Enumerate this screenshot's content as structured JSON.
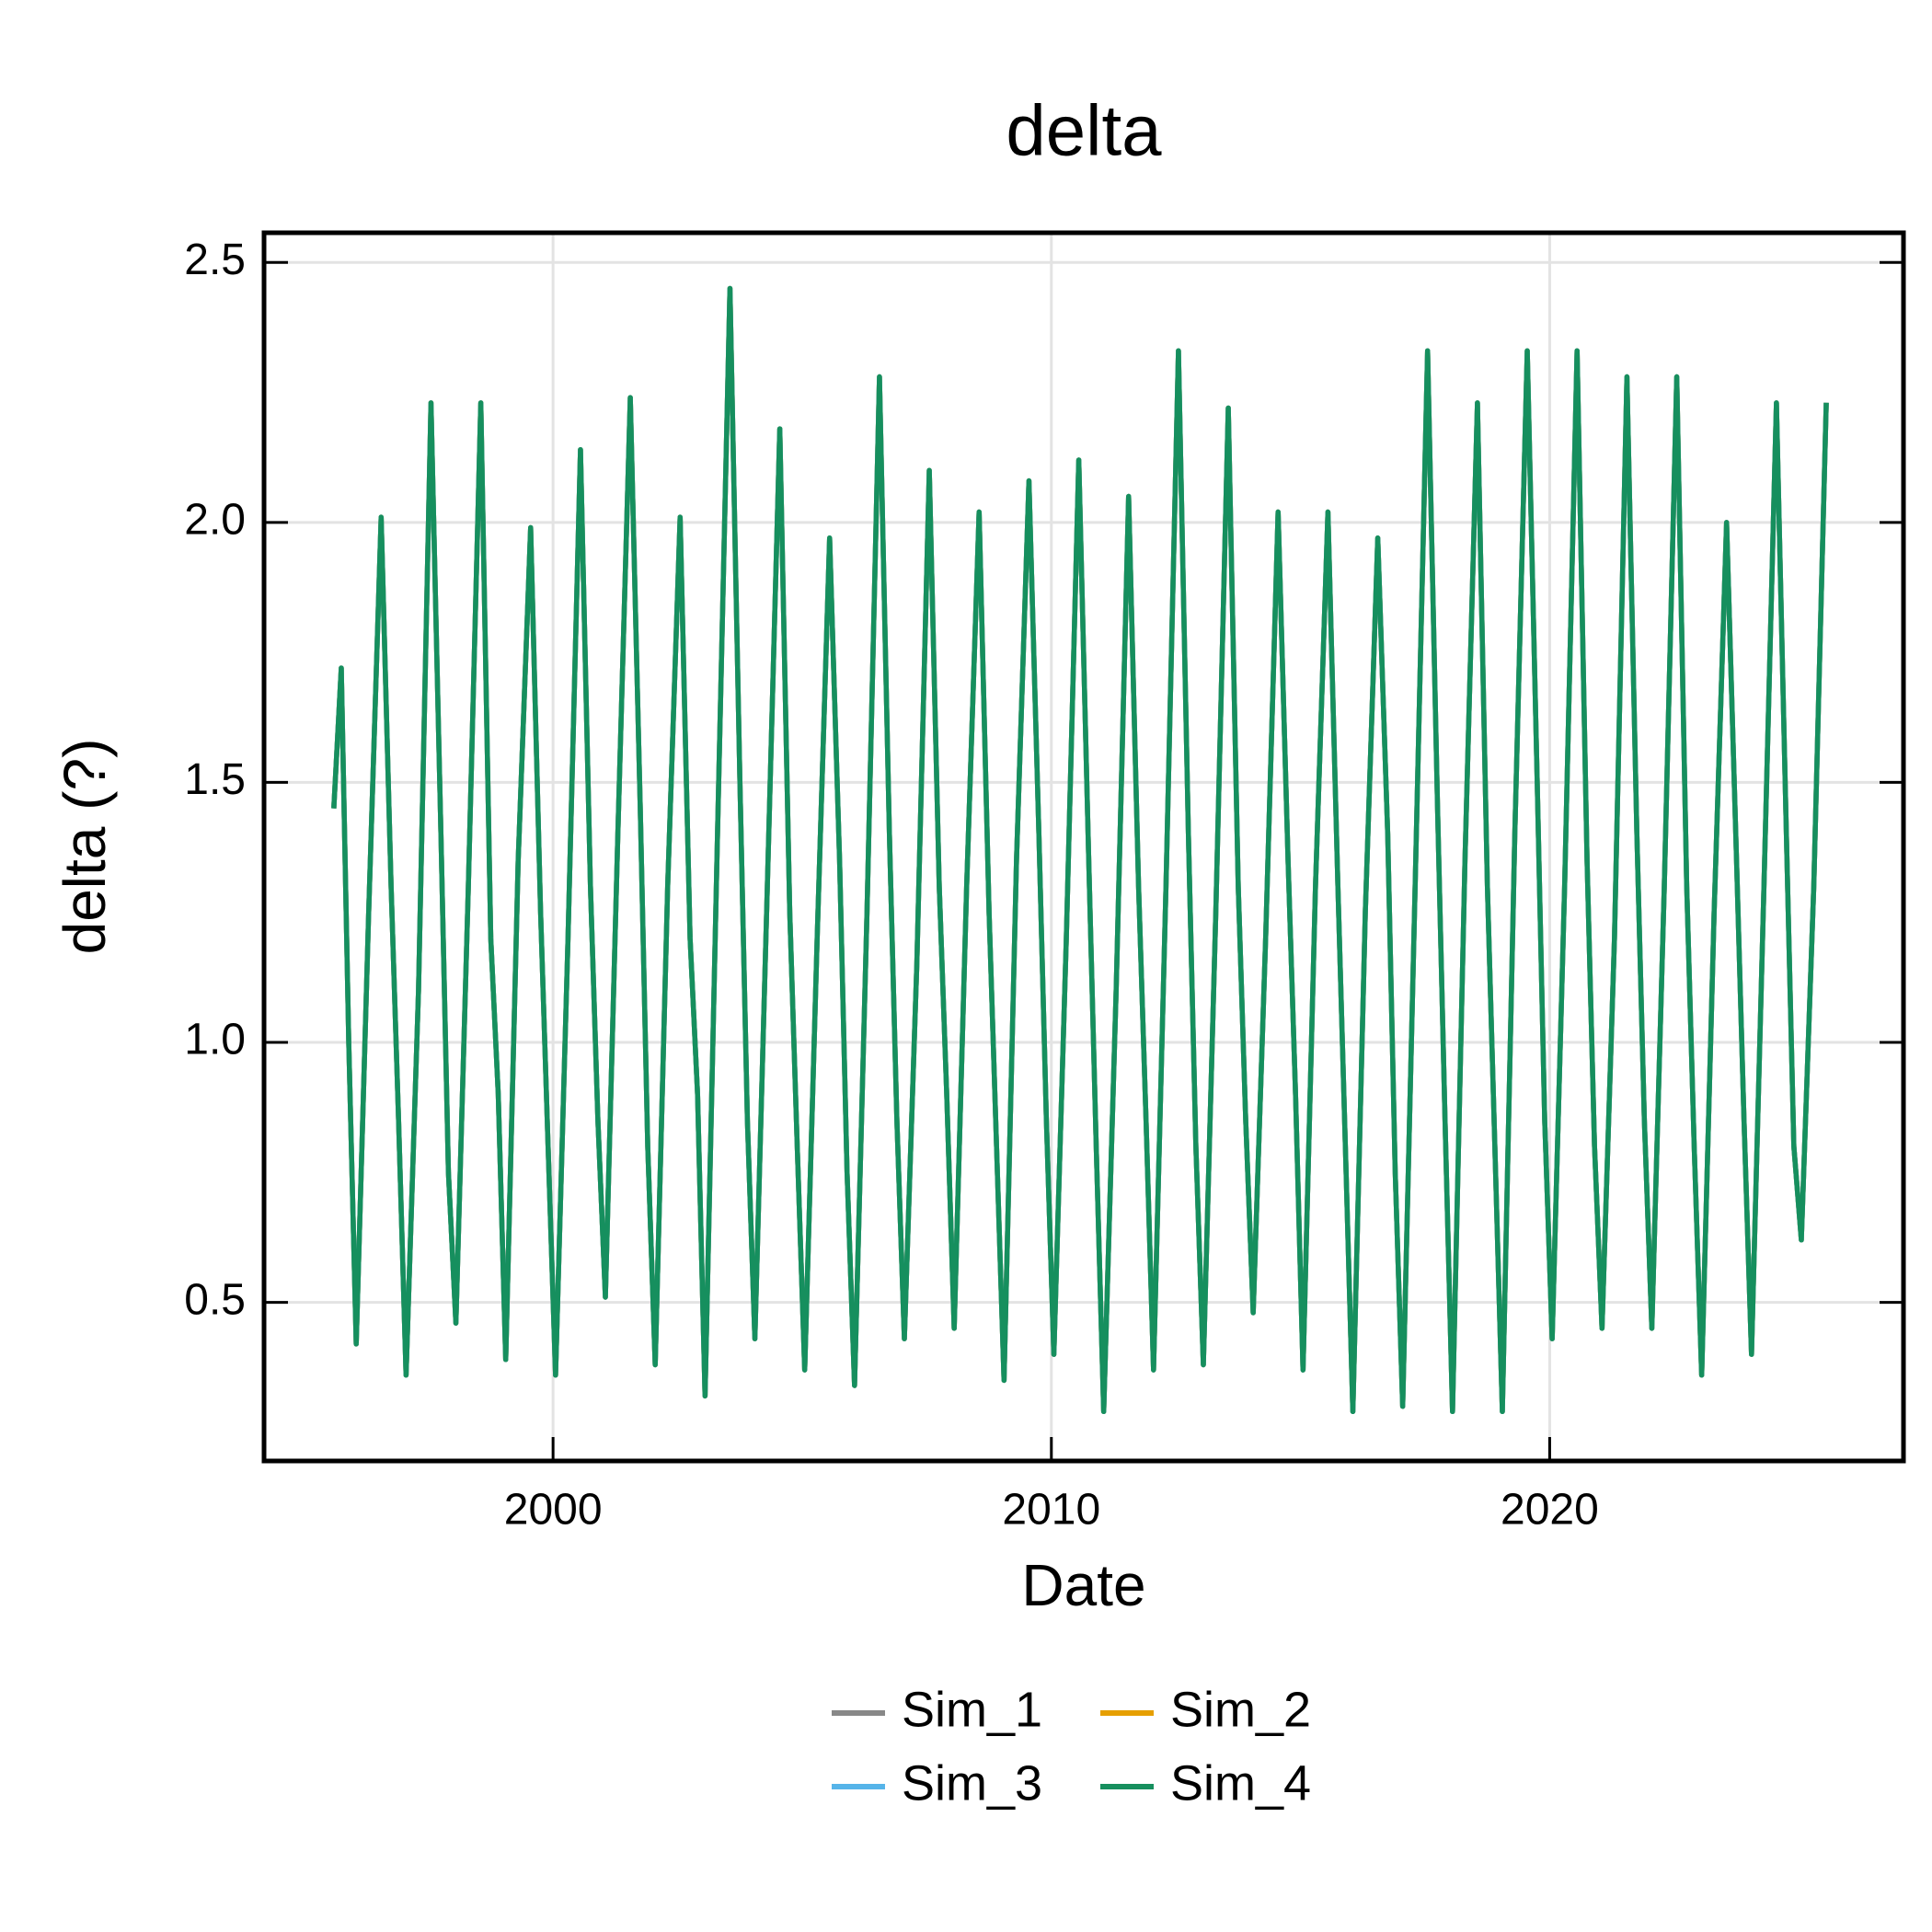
{
  "chart_data": {
    "type": "line",
    "title": "delta",
    "x_label": "Date",
    "y_label": "delta (?)",
    "x": [
      1995.6,
      1995.75,
      1995.9,
      1996.05,
      1996.3,
      1996.55,
      1996.75,
      1996.9,
      1997.05,
      1997.3,
      1997.55,
      1997.75,
      1997.9,
      1998.05,
      1998.3,
      1998.55,
      1998.75,
      1998.9,
      1999.05,
      1999.3,
      1999.55,
      1999.75,
      1999.9,
      2000.05,
      2000.3,
      2000.55,
      2000.75,
      2000.9,
      2001.05,
      2001.3,
      2001.55,
      2001.75,
      2001.9,
      2002.05,
      2002.3,
      2002.55,
      2002.75,
      2002.9,
      2003.05,
      2003.3,
      2003.55,
      2003.75,
      2003.9,
      2004.05,
      2004.3,
      2004.55,
      2004.75,
      2004.9,
      2005.05,
      2005.3,
      2005.55,
      2005.75,
      2005.9,
      2006.05,
      2006.3,
      2006.55,
      2006.75,
      2006.9,
      2007.05,
      2007.3,
      2007.55,
      2007.75,
      2007.9,
      2008.05,
      2008.3,
      2008.55,
      2008.75,
      2008.9,
      2009.05,
      2009.3,
      2009.55,
      2009.75,
      2009.9,
      2010.05,
      2010.3,
      2010.55,
      2010.75,
      2010.9,
      2011.05,
      2011.3,
      2011.55,
      2011.75,
      2011.9,
      2012.05,
      2012.3,
      2012.55,
      2012.75,
      2012.9,
      2013.05,
      2013.3,
      2013.55,
      2013.75,
      2013.9,
      2014.05,
      2014.3,
      2014.55,
      2014.75,
      2014.9,
      2015.05,
      2015.3,
      2015.55,
      2015.75,
      2015.9,
      2016.05,
      2016.3,
      2016.55,
      2016.75,
      2016.9,
      2017.05,
      2017.3,
      2017.55,
      2017.75,
      2017.9,
      2018.05,
      2018.3,
      2018.55,
      2018.75,
      2018.9,
      2019.05,
      2019.3,
      2019.55,
      2019.75,
      2019.9,
      2020.05,
      2020.3,
      2020.55,
      2020.75,
      2020.9,
      2021.05,
      2021.3,
      2021.55,
      2021.75,
      2021.9,
      2022.05,
      2022.3,
      2022.55,
      2022.75,
      2022.9,
      2023.05,
      2023.3,
      2023.55,
      2023.75,
      2023.9,
      2024.05,
      2024.3,
      2024.55,
      2024.75,
      2024.9,
      2025.05,
      2025.3,
      2025.55
    ],
    "series": [
      {
        "name": "Sim_1",
        "color": "#888888",
        "values": [
          1.45,
          1.72,
          1.0,
          0.42,
          1.25,
          2.01,
          1.3,
          0.85,
          0.36,
          1.1,
          2.23,
          1.4,
          0.75,
          0.46,
          1.3,
          2.23,
          1.2,
          0.9,
          0.39,
          1.35,
          1.99,
          1.25,
          0.8,
          0.36,
          1.2,
          2.14,
          1.3,
          0.85,
          0.51,
          1.4,
          2.24,
          1.45,
          0.8,
          0.38,
          1.3,
          2.01,
          1.2,
          0.9,
          0.32,
          1.4,
          2.45,
          1.5,
          0.85,
          0.43,
          1.3,
          2.18,
          1.25,
          0.8,
          0.37,
          1.2,
          1.97,
          1.35,
          0.75,
          0.34,
          1.25,
          2.28,
          1.4,
          0.85,
          0.43,
          1.15,
          2.1,
          1.3,
          0.9,
          0.45,
          1.3,
          2.02,
          1.25,
          0.8,
          0.35,
          1.35,
          2.08,
          1.4,
          0.85,
          0.4,
          1.2,
          2.12,
          1.35,
          0.8,
          0.29,
          1.1,
          2.05,
          1.3,
          0.85,
          0.37,
          1.3,
          2.33,
          1.4,
          0.8,
          0.38,
          1.25,
          2.22,
          1.3,
          0.85,
          0.48,
          1.2,
          2.02,
          1.35,
          0.9,
          0.37,
          1.3,
          2.02,
          1.3,
          0.8,
          0.29,
          1.25,
          1.97,
          1.4,
          0.75,
          0.3,
          1.3,
          2.33,
          1.45,
          0.85,
          0.29,
          1.35,
          2.23,
          1.3,
          0.8,
          0.29,
          1.4,
          2.33,
          1.5,
          0.85,
          0.43,
          1.3,
          2.33,
          1.35,
          0.8,
          0.45,
          1.2,
          2.28,
          1.4,
          0.85,
          0.45,
          1.3,
          2.28,
          1.3,
          0.8,
          0.36,
          1.25,
          2.0,
          1.35,
          0.85,
          0.4,
          1.3,
          2.23,
          1.4,
          0.8,
          0.62,
          1.3,
          2.23
        ]
      },
      {
        "name": "Sim_2",
        "color": "#E69F00",
        "values": [
          1.45,
          1.72,
          1.0,
          0.42,
          1.25,
          2.01,
          1.3,
          0.85,
          0.36,
          1.1,
          2.23,
          1.4,
          0.75,
          0.46,
          1.3,
          2.23,
          1.2,
          0.9,
          0.39,
          1.35,
          1.99,
          1.25,
          0.8,
          0.36,
          1.2,
          2.14,
          1.3,
          0.85,
          0.51,
          1.4,
          2.24,
          1.45,
          0.8,
          0.38,
          1.3,
          2.01,
          1.2,
          0.9,
          0.32,
          1.4,
          2.45,
          1.5,
          0.85,
          0.43,
          1.3,
          2.18,
          1.25,
          0.8,
          0.37,
          1.2,
          1.97,
          1.35,
          0.75,
          0.34,
          1.25,
          2.28,
          1.4,
          0.85,
          0.43,
          1.15,
          2.1,
          1.3,
          0.9,
          0.45,
          1.3,
          2.02,
          1.25,
          0.8,
          0.35,
          1.35,
          2.08,
          1.4,
          0.85,
          0.4,
          1.2,
          2.12,
          1.35,
          0.8,
          0.29,
          1.1,
          2.05,
          1.3,
          0.85,
          0.37,
          1.3,
          2.33,
          1.4,
          0.8,
          0.38,
          1.25,
          2.22,
          1.3,
          0.85,
          0.48,
          1.2,
          2.02,
          1.35,
          0.9,
          0.37,
          1.3,
          2.02,
          1.3,
          0.8,
          0.29,
          1.25,
          1.97,
          1.4,
          0.75,
          0.3,
          1.3,
          2.33,
          1.45,
          0.85,
          0.29,
          1.35,
          2.23,
          1.3,
          0.8,
          0.29,
          1.4,
          2.33,
          1.5,
          0.85,
          0.43,
          1.3,
          2.33,
          1.35,
          0.8,
          0.45,
          1.2,
          2.28,
          1.4,
          0.85,
          0.45,
          1.3,
          2.28,
          1.3,
          0.8,
          0.36,
          1.25,
          2.0,
          1.35,
          0.85,
          0.4,
          1.3,
          2.23,
          1.4,
          0.8,
          0.62,
          1.3,
          2.23
        ]
      },
      {
        "name": "Sim_3",
        "color": "#56B4E9",
        "values": [
          1.45,
          1.72,
          1.0,
          0.42,
          1.25,
          2.01,
          1.3,
          0.85,
          0.36,
          1.1,
          2.23,
          1.4,
          0.75,
          0.46,
          1.3,
          2.23,
          1.2,
          0.9,
          0.39,
          1.35,
          1.99,
          1.25,
          0.8,
          0.36,
          1.2,
          2.14,
          1.3,
          0.85,
          0.51,
          1.4,
          2.24,
          1.45,
          0.8,
          0.38,
          1.3,
          2.01,
          1.2,
          0.9,
          0.32,
          1.4,
          2.45,
          1.5,
          0.85,
          0.43,
          1.3,
          2.18,
          1.25,
          0.8,
          0.37,
          1.2,
          1.97,
          1.35,
          0.75,
          0.34,
          1.25,
          2.28,
          1.4,
          0.85,
          0.43,
          1.15,
          2.1,
          1.3,
          0.9,
          0.45,
          1.3,
          2.02,
          1.25,
          0.8,
          0.35,
          1.35,
          2.08,
          1.4,
          0.85,
          0.4,
          1.2,
          2.12,
          1.35,
          0.8,
          0.29,
          1.1,
          2.05,
          1.3,
          0.85,
          0.37,
          1.3,
          2.33,
          1.4,
          0.8,
          0.38,
          1.25,
          2.22,
          1.3,
          0.85,
          0.48,
          1.2,
          2.02,
          1.35,
          0.9,
          0.37,
          1.3,
          2.02,
          1.3,
          0.8,
          0.29,
          1.25,
          1.97,
          1.4,
          0.75,
          0.3,
          1.3,
          2.33,
          1.45,
          0.85,
          0.29,
          1.35,
          2.23,
          1.3,
          0.8,
          0.29,
          1.4,
          2.33,
          1.5,
          0.85,
          0.43,
          1.3,
          2.33,
          1.35,
          0.8,
          0.45,
          1.2,
          2.28,
          1.4,
          0.85,
          0.45,
          1.3,
          2.28,
          1.3,
          0.8,
          0.36,
          1.25,
          2.0,
          1.35,
          0.85,
          0.4,
          1.3,
          2.23,
          1.4,
          0.8,
          0.62,
          1.3,
          2.23
        ]
      },
      {
        "name": "Sim_4",
        "color": "#168F5E",
        "values": [
          1.45,
          1.72,
          1.0,
          0.42,
          1.25,
          2.01,
          1.3,
          0.85,
          0.36,
          1.1,
          2.23,
          1.4,
          0.75,
          0.46,
          1.3,
          2.23,
          1.2,
          0.9,
          0.39,
          1.35,
          1.99,
          1.25,
          0.8,
          0.36,
          1.2,
          2.14,
          1.3,
          0.85,
          0.51,
          1.4,
          2.24,
          1.45,
          0.8,
          0.38,
          1.3,
          2.01,
          1.2,
          0.9,
          0.32,
          1.4,
          2.45,
          1.5,
          0.85,
          0.43,
          1.3,
          2.18,
          1.25,
          0.8,
          0.37,
          1.2,
          1.97,
          1.35,
          0.75,
          0.34,
          1.25,
          2.28,
          1.4,
          0.85,
          0.43,
          1.15,
          2.1,
          1.3,
          0.9,
          0.45,
          1.3,
          2.02,
          1.25,
          0.8,
          0.35,
          1.35,
          2.08,
          1.4,
          0.85,
          0.4,
          1.2,
          2.12,
          1.35,
          0.8,
          0.29,
          1.1,
          2.05,
          1.3,
          0.85,
          0.37,
          1.3,
          2.33,
          1.4,
          0.8,
          0.38,
          1.25,
          2.22,
          1.3,
          0.85,
          0.48,
          1.2,
          2.02,
          1.35,
          0.9,
          0.37,
          1.3,
          2.02,
          1.3,
          0.8,
          0.29,
          1.25,
          1.97,
          1.4,
          0.75,
          0.3,
          1.3,
          2.33,
          1.45,
          0.85,
          0.29,
          1.35,
          2.23,
          1.3,
          0.8,
          0.29,
          1.4,
          2.33,
          1.5,
          0.85,
          0.43,
          1.3,
          2.33,
          1.35,
          0.8,
          0.45,
          1.2,
          2.28,
          1.4,
          0.85,
          0.45,
          1.3,
          2.28,
          1.3,
          0.8,
          0.36,
          1.25,
          2.0,
          1.35,
          0.85,
          0.4,
          1.3,
          2.23,
          1.4,
          0.8,
          0.62,
          1.3,
          2.23
        ]
      }
    ],
    "xlim": [
      1994.2,
      2027.1
    ],
    "xticks": [
      2000,
      2010,
      2020
    ],
    "ylim": [
      0.195,
      2.557
    ],
    "yticks": [
      2.5,
      {
        "value": 2,
        "label": "2.0"
      },
      1.5,
      {
        "value": 1,
        "label": "1.0"
      },
      0.5
    ],
    "grid": true,
    "legend": "bottom"
  }
}
